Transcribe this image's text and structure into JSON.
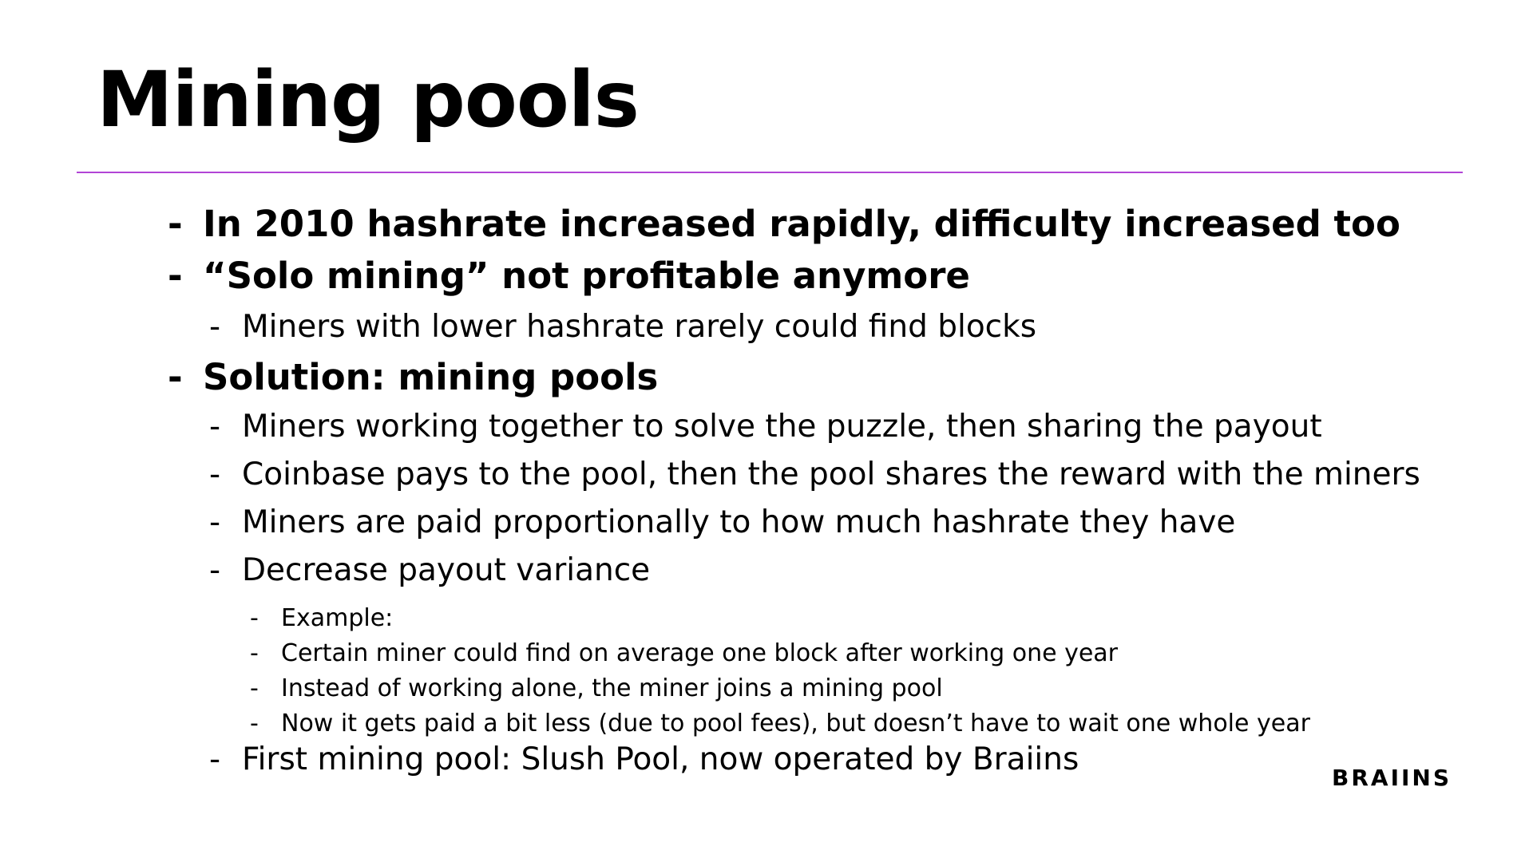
{
  "slide": {
    "title": "Mining pools",
    "accent_color": "#b144d6",
    "bullet_marker": "-",
    "bullets": [
      {
        "level": 1,
        "text": "In 2010 hashrate increased rapidly, difficulty increased too"
      },
      {
        "level": 1,
        "text": "“Solo mining” not profitable anymore"
      },
      {
        "level": 2,
        "text": "Miners with lower hashrate rarely could find blocks"
      },
      {
        "level": 1,
        "text": "Solution: mining pools"
      },
      {
        "level": 2,
        "text": "Miners working together to solve the puzzle, then sharing the payout"
      },
      {
        "level": 2,
        "text": "Coinbase pays to the pool, then the pool shares the reward with the miners"
      },
      {
        "level": 2,
        "text": "Miners are paid proportionally to how much hashrate they have"
      },
      {
        "level": 2,
        "text": "Decrease payout variance"
      },
      {
        "level": 3,
        "text": "Example:"
      },
      {
        "level": 3,
        "text": "Certain miner could find on average one block after working one year"
      },
      {
        "level": 3,
        "text": "Instead of working alone, the miner joins a mining pool"
      },
      {
        "level": 3,
        "text": "Now it gets paid a bit less (due to pool fees), but doesn’t have to wait one whole year"
      },
      {
        "level": 2,
        "text": "First mining pool: Slush Pool, now operated by Braiins"
      }
    ],
    "logo_text": "BRAIINS"
  }
}
